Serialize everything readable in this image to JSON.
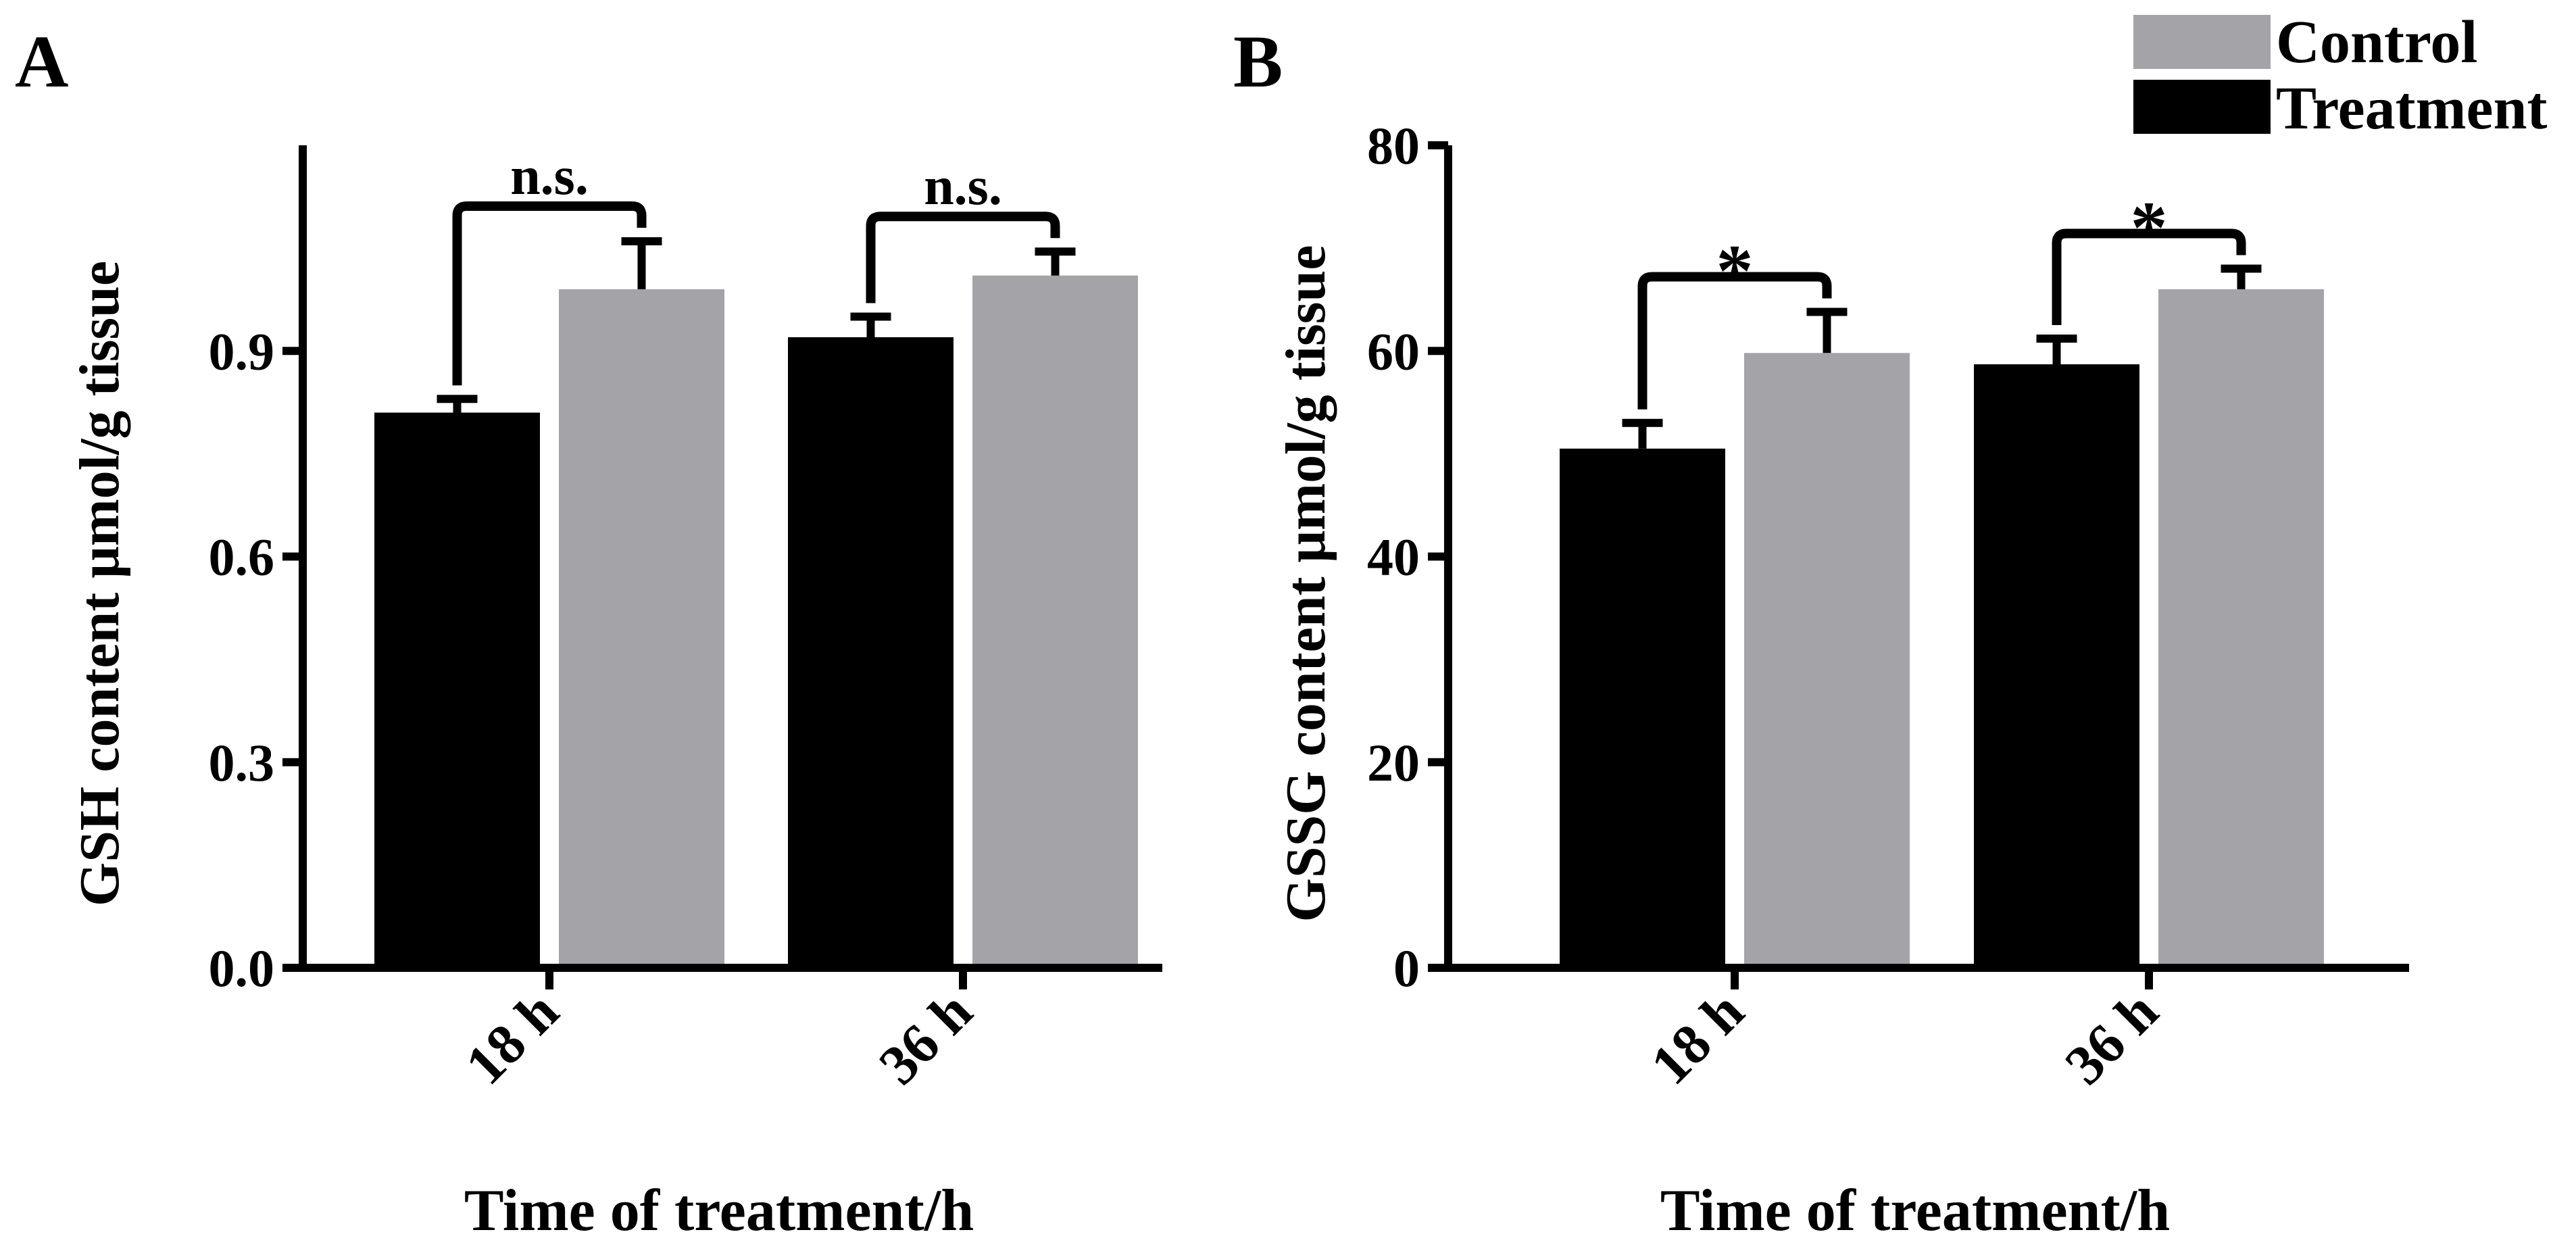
{
  "chart_data": [
    {
      "panel": "A",
      "type": "bar",
      "title": "",
      "xlabel": "Time of treatment/h",
      "ylabel": "GSH content μmol/g tissue",
      "categories": [
        "18 h",
        "36 h"
      ],
      "ylim": [
        0,
        1.2
      ],
      "yticks": [
        0.0,
        0.3,
        0.6,
        0.9
      ],
      "ytick_labels": [
        "0.0",
        "0.3",
        "0.6",
        "0.9"
      ],
      "series": [
        {
          "name": "Treatment",
          "color": "#000000",
          "values": [
            0.81,
            0.92
          ],
          "errors": [
            0.02,
            0.03
          ]
        },
        {
          "name": "Control",
          "color": "#A4A3A8",
          "values": [
            0.99,
            1.01
          ],
          "errors": [
            0.07,
            0.035
          ]
        }
      ],
      "significance": [
        {
          "category_index": 0,
          "label": "n.s."
        },
        {
          "category_index": 1,
          "label": "n.s."
        }
      ]
    },
    {
      "panel": "B",
      "type": "bar",
      "title": "",
      "xlabel": "Time of treatment/h",
      "ylabel": "GSSG content μmol/g tissue",
      "categories": [
        "18 h",
        "36 h"
      ],
      "ylim": [
        0,
        80
      ],
      "yticks": [
        0,
        20,
        40,
        60,
        80
      ],
      "ytick_labels": [
        "0",
        "20",
        "40",
        "60",
        "80"
      ],
      "series": [
        {
          "name": "Treatment",
          "color": "#000000",
          "values": [
            50.5,
            58.7
          ],
          "errors": [
            2.5,
            2.5
          ]
        },
        {
          "name": "Control",
          "color": "#A4A3A8",
          "values": [
            59.8,
            66.0
          ],
          "errors": [
            4.0,
            2.0
          ]
        }
      ],
      "significance": [
        {
          "category_index": 0,
          "label": "*"
        },
        {
          "category_index": 1,
          "label": "*"
        }
      ]
    }
  ],
  "legend": {
    "position": "top-right",
    "entries": [
      {
        "label": "Control",
        "color": "#A4A3A8"
      },
      {
        "label": "Treatment",
        "color": "#000000"
      }
    ]
  }
}
